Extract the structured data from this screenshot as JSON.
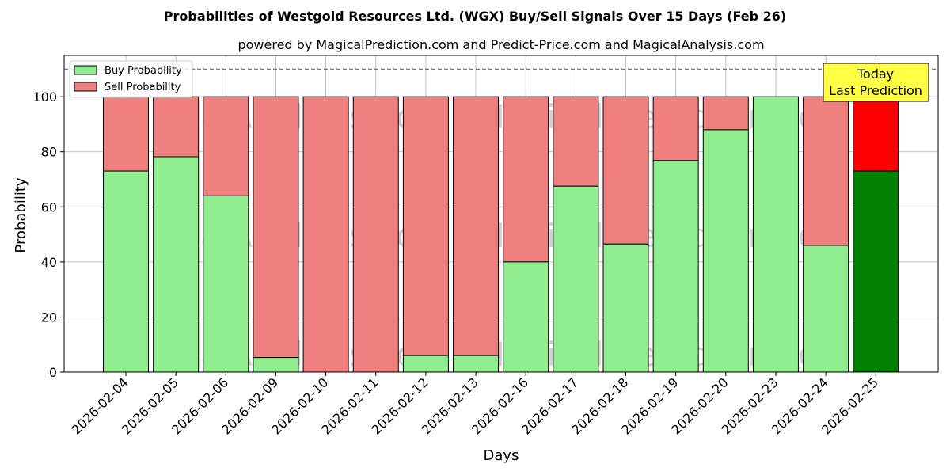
{
  "chart_data": {
    "type": "bar",
    "stacked": true,
    "title": "Probabilities of Westgold Resources Ltd. (WGX) Buy/Sell Signals Over 15 Days (Feb 26)",
    "subtitle": "powered by MagicalPrediction.com and Predict-Price.com and MagicalAnalysis.com",
    "xlabel": "Days",
    "ylabel": "Probability",
    "ylim": [
      0,
      115
    ],
    "yticks": [
      0,
      20,
      40,
      60,
      80,
      100
    ],
    "grid": true,
    "legend_position": "top-left",
    "reference_line": 110,
    "categories": [
      "2026-02-04",
      "2026-02-05",
      "2026-02-06",
      "2026-02-09",
      "2026-02-10",
      "2026-02-11",
      "2026-02-12",
      "2026-02-13",
      "2026-02-16",
      "2026-02-17",
      "2026-02-18",
      "2026-02-19",
      "2026-02-20",
      "2026-02-23",
      "2026-02-24",
      "2026-02-25"
    ],
    "series": [
      {
        "name": "Buy Probability",
        "values": [
          73,
          78.2,
          64,
          5.3,
          0,
          0,
          6,
          6,
          40,
          67.5,
          46.5,
          76.8,
          88,
          100,
          46,
          73
        ]
      },
      {
        "name": "Sell Probability",
        "values": [
          27,
          21.8,
          36,
          94.7,
          100,
          100,
          94,
          94,
          60,
          32.5,
          53.5,
          23.2,
          12,
          0,
          54,
          27
        ]
      }
    ],
    "annotation": {
      "line1": "Today",
      "line2": "Last Prediction"
    },
    "watermarks": [
      "MagicalAnalysis.com",
      "MagicalPrediction.com"
    ],
    "colors": {
      "buy": "#90ee90",
      "sell": "#f08080",
      "buy_today": "#008000",
      "sell_today": "#ff0000",
      "annotation_bg": "#ffff44",
      "grid": "#b0b0b0",
      "watermark": "#22aa55"
    }
  }
}
